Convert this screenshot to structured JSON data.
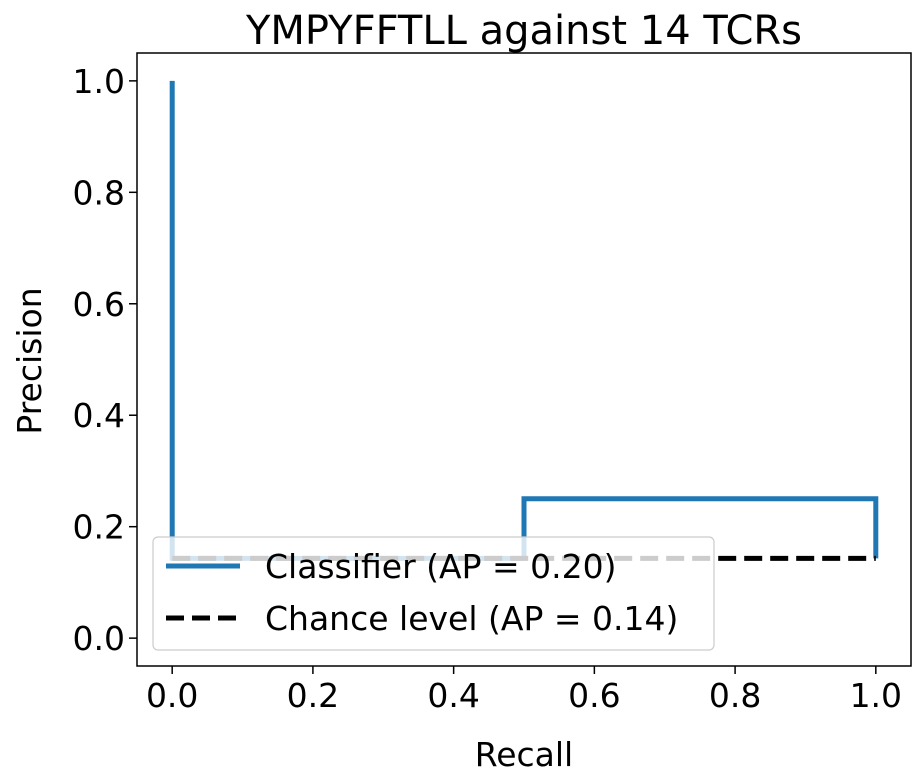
{
  "chart_data": {
    "type": "line",
    "title": "YMPYFFTLL against 14 TCRs",
    "xlabel": "Recall",
    "ylabel": "Precision",
    "xlim": [
      -0.05,
      1.05
    ],
    "ylim": [
      -0.05,
      1.05
    ],
    "xticks": [
      0.0,
      0.2,
      0.4,
      0.6,
      0.8,
      1.0
    ],
    "yticks": [
      0.0,
      0.2,
      0.4,
      0.6,
      0.8,
      1.0
    ],
    "xtick_labels": [
      "0.0",
      "0.2",
      "0.4",
      "0.6",
      "0.8",
      "1.0"
    ],
    "ytick_labels": [
      "0.0",
      "0.2",
      "0.4",
      "0.6",
      "0.8",
      "1.0"
    ],
    "grid": false,
    "legend_position": "lower-left",
    "series": [
      {
        "name": "Classifier (AP = 0.20)",
        "color": "#1f77b4",
        "style": "solid",
        "x": [
          1.0,
          1.0,
          0.5,
          0.5,
          0.0,
          0.0
        ],
        "y": [
          0.143,
          0.25,
          0.25,
          0.143,
          0.143,
          1.0
        ]
      },
      {
        "name": "Chance level (AP = 0.14)",
        "color": "#000000",
        "style": "dashed",
        "x": [
          0.0,
          1.0
        ],
        "y": [
          0.143,
          0.143
        ]
      }
    ]
  }
}
